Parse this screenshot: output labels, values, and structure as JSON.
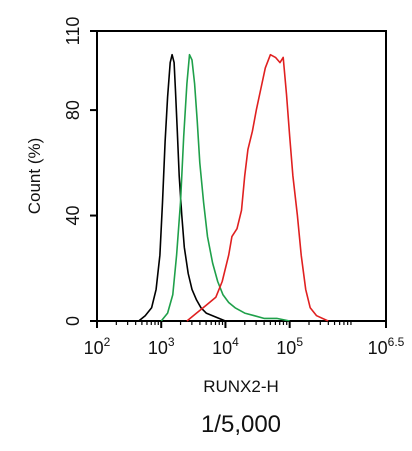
{
  "chart_data": {
    "type": "line",
    "title": "",
    "caption": "1/5,000",
    "xlabel": "RUNX2-H",
    "ylabel": "Count  (%)",
    "x_scale": "log",
    "xlim": [
      2,
      6.5
    ],
    "ylim": [
      0,
      110
    ],
    "x_ticks": [
      {
        "value": 2,
        "base": "10",
        "exp": "2"
      },
      {
        "value": 3,
        "base": "10",
        "exp": "3"
      },
      {
        "value": 4,
        "base": "10",
        "exp": "4"
      },
      {
        "value": 5,
        "base": "10",
        "exp": "5"
      },
      {
        "value": 6.5,
        "base": "10",
        "exp": "6.5"
      }
    ],
    "y_ticks": [
      {
        "value": 0,
        "label": "0"
      },
      {
        "value": 40,
        "label": "40"
      },
      {
        "value": 80,
        "label": "80"
      },
      {
        "value": 110,
        "label": "110"
      }
    ],
    "grid": false,
    "legend": "none",
    "series": [
      {
        "color": "#000000",
        "x": [
          2.65,
          2.75,
          2.85,
          2.92,
          2.98,
          3.02,
          3.06,
          3.1,
          3.14,
          3.17,
          3.2,
          3.22,
          3.25,
          3.28,
          3.32,
          3.36,
          3.42,
          3.48,
          3.55,
          3.62,
          3.7,
          3.8,
          3.9,
          4.0
        ],
        "y": [
          0,
          2,
          5,
          12,
          25,
          45,
          68,
          85,
          98,
          101,
          98,
          88,
          72,
          55,
          40,
          28,
          18,
          12,
          8,
          5,
          3,
          2,
          1,
          0
        ]
      },
      {
        "color": "#1fa04a",
        "x": [
          3.0,
          3.1,
          3.18,
          3.24,
          3.3,
          3.35,
          3.4,
          3.44,
          3.48,
          3.52,
          3.56,
          3.6,
          3.66,
          3.72,
          3.8,
          3.88,
          3.96,
          4.05,
          4.15,
          4.3,
          4.45,
          4.6,
          4.8,
          5.0
        ],
        "y": [
          0,
          3,
          10,
          25,
          45,
          70,
          90,
          101,
          99,
          90,
          76,
          60,
          45,
          32,
          22,
          15,
          10,
          7,
          5,
          3,
          2,
          1,
          1,
          0
        ]
      },
      {
        "color": "#e02020",
        "x": [
          3.4,
          3.55,
          3.7,
          3.85,
          3.95,
          4.05,
          4.1,
          4.18,
          4.25,
          4.3,
          4.35,
          4.42,
          4.48,
          4.55,
          4.62,
          4.7,
          4.78,
          4.85,
          4.9,
          4.95,
          5.0,
          5.05,
          5.12,
          5.18,
          5.25,
          5.32,
          5.42,
          5.6
        ],
        "y": [
          0,
          3,
          6,
          9,
          15,
          25,
          32,
          35,
          42,
          55,
          65,
          72,
          80,
          88,
          96,
          101,
          100,
          98,
          100,
          86,
          70,
          55,
          40,
          25,
          12,
          5,
          2,
          0
        ]
      }
    ]
  }
}
